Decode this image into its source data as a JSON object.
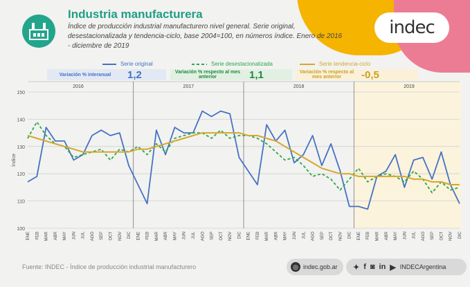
{
  "header": {
    "title": "Industria manufacturera",
    "subtitle": "Índice de producción industrial manufacturero nivel general. Serie original, desestacionalizada y tendencia-ciclo, base 2004=100, en números índice. Enero de 2016 - diciembre de 2019",
    "logo": "indec"
  },
  "stats": [
    {
      "label": "Variación % interanual",
      "value": "1,2",
      "color": "#4472c4",
      "bg": "#e3e9f4"
    },
    {
      "label": "Variación % respecto al mes anterior",
      "value": "1,1",
      "color": "#1e8a3c",
      "bg": "#e2f0e4"
    },
    {
      "label": "Variación % respecto al mes anterior",
      "value": "-0,5",
      "color": "#c9a227",
      "bg": "#fbf0d8"
    }
  ],
  "footer": {
    "source": "Fuente: INDEC - Índice de producción industrial manufacturero",
    "website": "indec.gob.ar",
    "social_handle": "INDECArgentina",
    "icons": [
      "globe-icon",
      "twitter-icon",
      "facebook-icon",
      "instagram-icon",
      "linkedin-icon",
      "youtube-icon"
    ]
  },
  "chart_data": {
    "type": "line",
    "ylabel": "Índice",
    "ylim": [
      100,
      150
    ],
    "yticks": [
      100,
      110,
      120,
      130,
      140,
      150
    ],
    "years": [
      "2016",
      "2017",
      "2018",
      "2019"
    ],
    "categories": [
      "ENE",
      "FEB",
      "MAR",
      "ABR",
      "MAY",
      "JUN",
      "JUL",
      "AGO",
      "SEP",
      "OCT",
      "NOV",
      "DIC",
      "ENE",
      "FEB",
      "MAR",
      "ABR",
      "MAY",
      "JUN",
      "JUL",
      "AGO",
      "SEP",
      "OCT",
      "NOV",
      "DIC",
      "ENE",
      "FEB",
      "MAR",
      "ABR",
      "MAY",
      "JUN",
      "JUL",
      "AGO",
      "SEP",
      "OCT",
      "NOV",
      "DIC",
      "ENE",
      "FEB",
      "MAR",
      "ABR",
      "MAY",
      "JUN",
      "JUL",
      "AGO",
      "SEP",
      "OCT",
      "NOV",
      "DIC"
    ],
    "legend_position": "top",
    "grid": true,
    "series": [
      {
        "name": "Serie original",
        "color": "#4472c4",
        "style": "solid",
        "values": [
          117,
          119,
          137,
          132,
          132,
          125,
          127,
          134,
          136,
          134,
          135,
          123,
          116,
          109,
          136,
          127,
          137,
          135,
          135,
          143,
          141,
          143,
          142,
          126,
          121,
          116,
          138,
          132,
          136,
          124,
          127,
          134,
          123,
          131,
          121,
          108,
          108,
          107,
          119,
          121,
          127,
          115,
          125,
          126,
          118,
          128,
          116,
          109
        ]
      },
      {
        "name": "Serie desestacionalizada",
        "color": "#2aa84a",
        "style": "dashed",
        "values": [
          133,
          139,
          134,
          131,
          130,
          126,
          127,
          128,
          129,
          125,
          129,
          128,
          130,
          127,
          131,
          128,
          133,
          134,
          135,
          135,
          133,
          136,
          133,
          134,
          134,
          133,
          131,
          128,
          125,
          126,
          123,
          119,
          120,
          118,
          114,
          118,
          122,
          117,
          119,
          120,
          119,
          117,
          121,
          118,
          113,
          117,
          114,
          115
        ]
      },
      {
        "name": "Serie tendencia-ciclo",
        "color": "#d4a72c",
        "style": "solid",
        "values": [
          134,
          133,
          132,
          131,
          130,
          129,
          128,
          128,
          128,
          128,
          128,
          128,
          129,
          129,
          130,
          131,
          132,
          133,
          134,
          135,
          135,
          135,
          135,
          135,
          134,
          134,
          133,
          132,
          130,
          128,
          126,
          124,
          122,
          121,
          120,
          120,
          119,
          119,
          119,
          119,
          119,
          119,
          118,
          118,
          117,
          117,
          116,
          116
        ]
      }
    ]
  }
}
